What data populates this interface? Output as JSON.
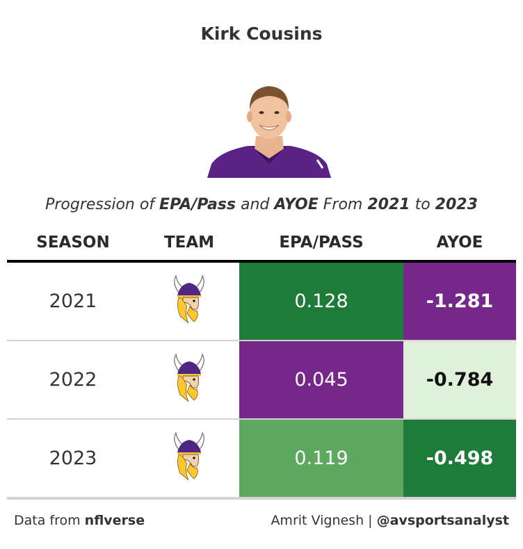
{
  "title": "Kirk Cousins",
  "subtitle": {
    "p1": "Progression of ",
    "b1": "EPA/Pass",
    "p2": " and ",
    "b2": "AYOE",
    "p3": " From ",
    "b3": "2021",
    "p4": " to ",
    "b4": "2023"
  },
  "headshot_icon": "player-headshot",
  "team_logo_icon": "vikings-logo",
  "colors": {
    "dark_green": "#1e7b3a",
    "medium_green": "#5fa862",
    "light_green": "#dff0db",
    "purple": "#76288a",
    "header_rule": "#000000",
    "row_rule": "#d3d3d3"
  },
  "chart_data": {
    "type": "table",
    "columns": [
      "SEASON",
      "TEAM",
      "EPA/PASS",
      "AYOE"
    ],
    "rows": [
      {
        "season": "2021",
        "team": "MIN",
        "epa_pass": "0.128",
        "ayoe": "-1.281",
        "epa_bg": "#1e7b3a",
        "ayoe_bg": "#76288a",
        "ayoe_fg": "#ffffff"
      },
      {
        "season": "2022",
        "team": "MIN",
        "epa_pass": "0.045",
        "ayoe": "-0.784",
        "epa_bg": "#76288a",
        "ayoe_bg": "#dff0db",
        "ayoe_fg": "#111111"
      },
      {
        "season": "2023",
        "team": "MIN",
        "epa_pass": "0.119",
        "ayoe": "-0.498",
        "epa_bg": "#5fa862",
        "ayoe_bg": "#1e7b3a",
        "ayoe_fg": "#ffffff"
      }
    ]
  },
  "footer": {
    "left_prefix": "Data from ",
    "left_source": "nflverse",
    "right_name": "Amrit Vignesh | ",
    "right_handle": "@avsportsanalyst"
  }
}
